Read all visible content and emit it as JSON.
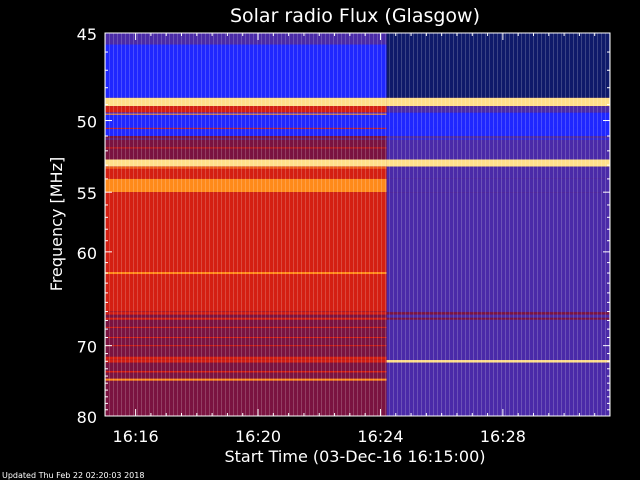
{
  "chart_data": {
    "type": "heatmap",
    "title": "Solar radio Flux (Glasgow)",
    "xlabel": "Start Time (03-Dec-16 16:15:00)",
    "ylabel": "Frequency [MHz]",
    "x_unit": "minutes after 16:15:00",
    "x_range_minutes": [
      0,
      16.5
    ],
    "x_tick_labels": [
      "16:16",
      "16:20",
      "16:24",
      "16:28"
    ],
    "x_ticks_minutes": [
      1,
      5,
      9,
      13
    ],
    "y_range_mhz": [
      45,
      80
    ],
    "y_scale": "reciprocal",
    "y_ticks_mhz": [
      45,
      50,
      55,
      60,
      70,
      80
    ],
    "y_tick_labels": [
      "45",
      "50",
      "55",
      "60",
      "70",
      "80"
    ],
    "transition_minute": 9.2,
    "colors": {
      "blue": "#1f27ff",
      "navy": "#0f1a6a",
      "red": "#d41f12",
      "dark_red": "#7a1340",
      "purple": "#4a2aa8",
      "orange": "#ff8a1a",
      "yellow": "#ffe08a"
    },
    "bands": [
      {
        "f1": 45.0,
        "f2": 45.6,
        "left": "purple",
        "right": "navy"
      },
      {
        "f1": 45.6,
        "f2": 48.6,
        "left": "blue",
        "right": "navy"
      },
      {
        "f1": 48.6,
        "f2": 49.1,
        "left": "yellow",
        "right": "yellow"
      },
      {
        "f1": 49.1,
        "f2": 49.5,
        "left": "red",
        "right": "purple"
      },
      {
        "f1": 49.5,
        "f2": 51.0,
        "left": "blue",
        "right": "blue"
      },
      {
        "f1": 51.0,
        "f2": 52.6,
        "left": "dark_red",
        "right": "purple"
      },
      {
        "f1": 52.6,
        "f2": 53.1,
        "left": "yellow",
        "right": "yellow"
      },
      {
        "f1": 53.1,
        "f2": 54.0,
        "left": "red",
        "right": "purple"
      },
      {
        "f1": 54.0,
        "f2": 55.0,
        "left": "orange",
        "right": "purple"
      },
      {
        "f1": 55.0,
        "f2": 66.0,
        "left": "red",
        "right": "purple"
      },
      {
        "f1": 66.0,
        "f2": 80.0,
        "left": "dark_red",
        "right": "purple"
      }
    ],
    "lines": [
      {
        "f": 49.6,
        "h": 1.2,
        "left": "orange",
        "right": "blue"
      },
      {
        "f": 50.5,
        "h": 1.0,
        "left": "red",
        "right": "blue"
      },
      {
        "f": 51.2,
        "h": 1.0,
        "left": "purple",
        "right": "blue"
      },
      {
        "f": 51.8,
        "h": 1.0,
        "left": "red",
        "right": "purple"
      },
      {
        "f": 53.2,
        "h": 1.0,
        "left": "orange",
        "right": "purple"
      },
      {
        "f": 62.0,
        "h": 2.0,
        "left": "orange",
        "right": "purple"
      },
      {
        "f": 63.8,
        "h": 1.0,
        "left": "red",
        "right": "purple"
      },
      {
        "f": 65.0,
        "h": 2.5,
        "left": "red",
        "right": "purple"
      },
      {
        "f": 66.2,
        "h": 2.5,
        "left": "red",
        "right": "dark_red"
      },
      {
        "f": 66.8,
        "h": 2.0,
        "left": "red",
        "right": "dark_red"
      },
      {
        "f": 67.8,
        "h": 1.0,
        "left": "red",
        "right": "purple"
      },
      {
        "f": 69.0,
        "h": 1.0,
        "left": "red",
        "right": "purple"
      },
      {
        "f": 70.0,
        "h": 1.0,
        "left": "red",
        "right": "purple"
      },
      {
        "f": 71.6,
        "h": 3.0,
        "left": "red",
        "right": "purple"
      },
      {
        "f": 72.0,
        "h": 2.5,
        "left": "red",
        "right": "yellow"
      },
      {
        "f": 73.4,
        "h": 1.5,
        "left": "red",
        "right": "purple"
      },
      {
        "f": 74.5,
        "h": 2.0,
        "left": "orange",
        "right": "purple"
      },
      {
        "f": 75.5,
        "h": 1.0,
        "left": "dark_red",
        "right": "purple"
      },
      {
        "f": 76.5,
        "h": 1.0,
        "left": "dark_red",
        "right": "purple"
      },
      {
        "f": 78.0,
        "h": 1.0,
        "left": "dark_red",
        "right": "purple"
      },
      {
        "f": 79.0,
        "h": 1.0,
        "left": "dark_red",
        "right": "purple"
      }
    ]
  },
  "footer": {
    "updated": "Updated Thu Feb 22 02:20:03 2018"
  }
}
